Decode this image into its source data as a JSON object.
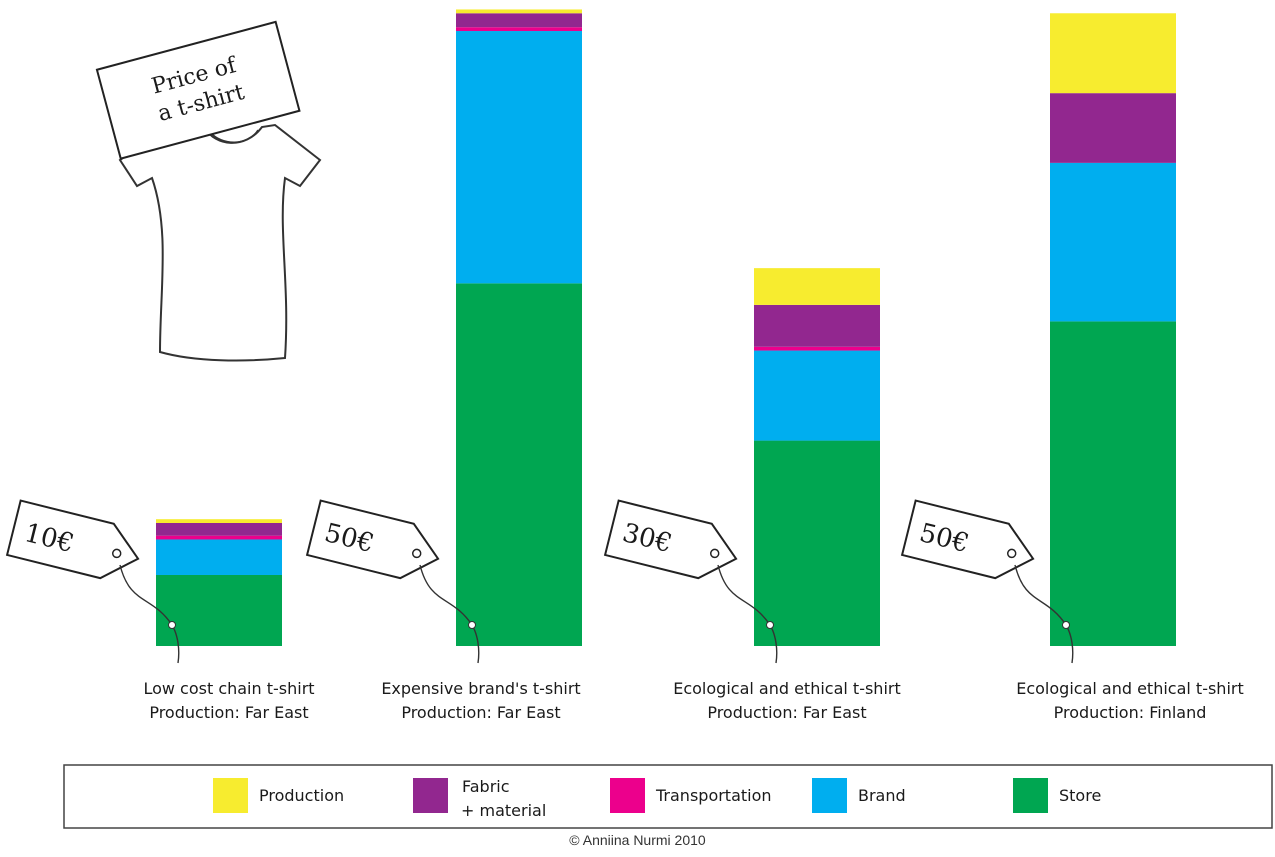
{
  "chart_data": {
    "type": "bar",
    "stacked": true,
    "units": "€",
    "title_sign": [
      "Price of",
      "a t-shirt"
    ],
    "categories": [
      {
        "line1": "Low cost chain t-shirt",
        "line2": "Production: Far East",
        "price_tag": "10€"
      },
      {
        "line1": "Expensive brand's t-shirt",
        "line2": "Production: Far East",
        "price_tag": "50€"
      },
      {
        "line1": "Ecological and ethical t-shirt",
        "line2": "Production: Far East",
        "price_tag": "30€"
      },
      {
        "line1": "Ecological and ethical t-shirt",
        "line2": "Production: Finland",
        "price_tag": "50€"
      }
    ],
    "series": [
      {
        "name": "Store",
        "color": "#00a651",
        "values": [
          5.6,
          28.6,
          16.2,
          25.6
        ]
      },
      {
        "name": "Brand",
        "color": "#00aeef",
        "values": [
          2.8,
          19.9,
          7.1,
          12.5
        ]
      },
      {
        "name": "Transportation",
        "color": "#ec008c",
        "values": [
          0.3,
          0.3,
          0.3,
          0.0
        ]
      },
      {
        "name": "Fabric + material",
        "color": "#92278f",
        "values": [
          1.0,
          1.1,
          3.3,
          5.5
        ]
      },
      {
        "name": "Production",
        "color": "#f7ec2f",
        "values": [
          0.3,
          0.3,
          2.9,
          6.3
        ]
      }
    ],
    "ylim": [
      0,
      50
    ],
    "grid": false,
    "legend_position": "bottom"
  },
  "legend": {
    "items": [
      {
        "label_lines": [
          "Production"
        ],
        "color": "#f7ec2f"
      },
      {
        "label_lines": [
          "Fabric",
          "+ material"
        ],
        "color": "#92278f"
      },
      {
        "label_lines": [
          "Transportation"
        ],
        "color": "#ec008c"
      },
      {
        "label_lines": [
          "Brand"
        ],
        "color": "#00aeef"
      },
      {
        "label_lines": [
          "Store"
        ],
        "color": "#00a651"
      }
    ]
  },
  "icons": [
    "t-shirt-icon",
    "price-tag-icon"
  ],
  "credit": "© Anniina Nurmi 2010"
}
